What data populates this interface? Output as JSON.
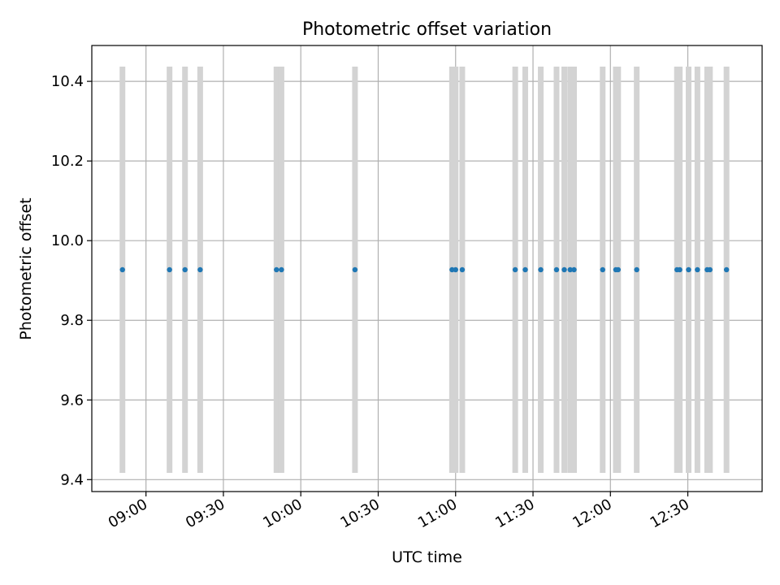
{
  "chart_data": {
    "type": "scatter",
    "title": "Photometric offset variation",
    "xlabel": "UTC time",
    "ylabel": "Photometric offset",
    "xlim": [
      8.65,
      12.98
    ],
    "ylim": [
      9.37,
      10.49
    ],
    "x_ticks": [
      {
        "value": 9.0,
        "label": "09:00"
      },
      {
        "value": 9.5,
        "label": "09:30"
      },
      {
        "value": 10.0,
        "label": "10:00"
      },
      {
        "value": 10.5,
        "label": "10:30"
      },
      {
        "value": 11.0,
        "label": "11:00"
      },
      {
        "value": 11.5,
        "label": "11:30"
      },
      {
        "value": 12.0,
        "label": "12:00"
      },
      {
        "value": 12.5,
        "label": "12:30"
      }
    ],
    "y_ticks": [
      {
        "value": 9.4,
        "label": "9.4"
      },
      {
        "value": 9.6,
        "label": "9.6"
      },
      {
        "value": 9.8,
        "label": "9.8"
      },
      {
        "value": 10.0,
        "label": "10.0"
      },
      {
        "value": 10.2,
        "label": "10.2"
      },
      {
        "value": 10.4,
        "label": "10.4"
      }
    ],
    "grid": true,
    "series": [
      {
        "name": "Photometric offset",
        "color": "#1f77b4",
        "error_color": "#d3d3d3",
        "error": 0.51,
        "x": [
          8.848,
          9.152,
          9.252,
          9.35,
          9.843,
          9.875,
          10.35,
          10.977,
          11.0,
          11.043,
          11.385,
          11.45,
          11.55,
          11.652,
          11.702,
          11.74,
          11.765,
          11.95,
          12.035,
          12.05,
          12.17,
          12.43,
          12.448,
          12.505,
          12.562,
          12.625,
          12.643,
          12.75
        ],
        "y": [
          9.927,
          9.927,
          9.927,
          9.927,
          9.927,
          9.927,
          9.927,
          9.927,
          9.927,
          9.927,
          9.927,
          9.927,
          9.927,
          9.927,
          9.927,
          9.927,
          9.927,
          9.927,
          9.927,
          9.927,
          9.927,
          9.927,
          9.927,
          9.927,
          9.927,
          9.927,
          9.927,
          9.927
        ]
      }
    ]
  }
}
